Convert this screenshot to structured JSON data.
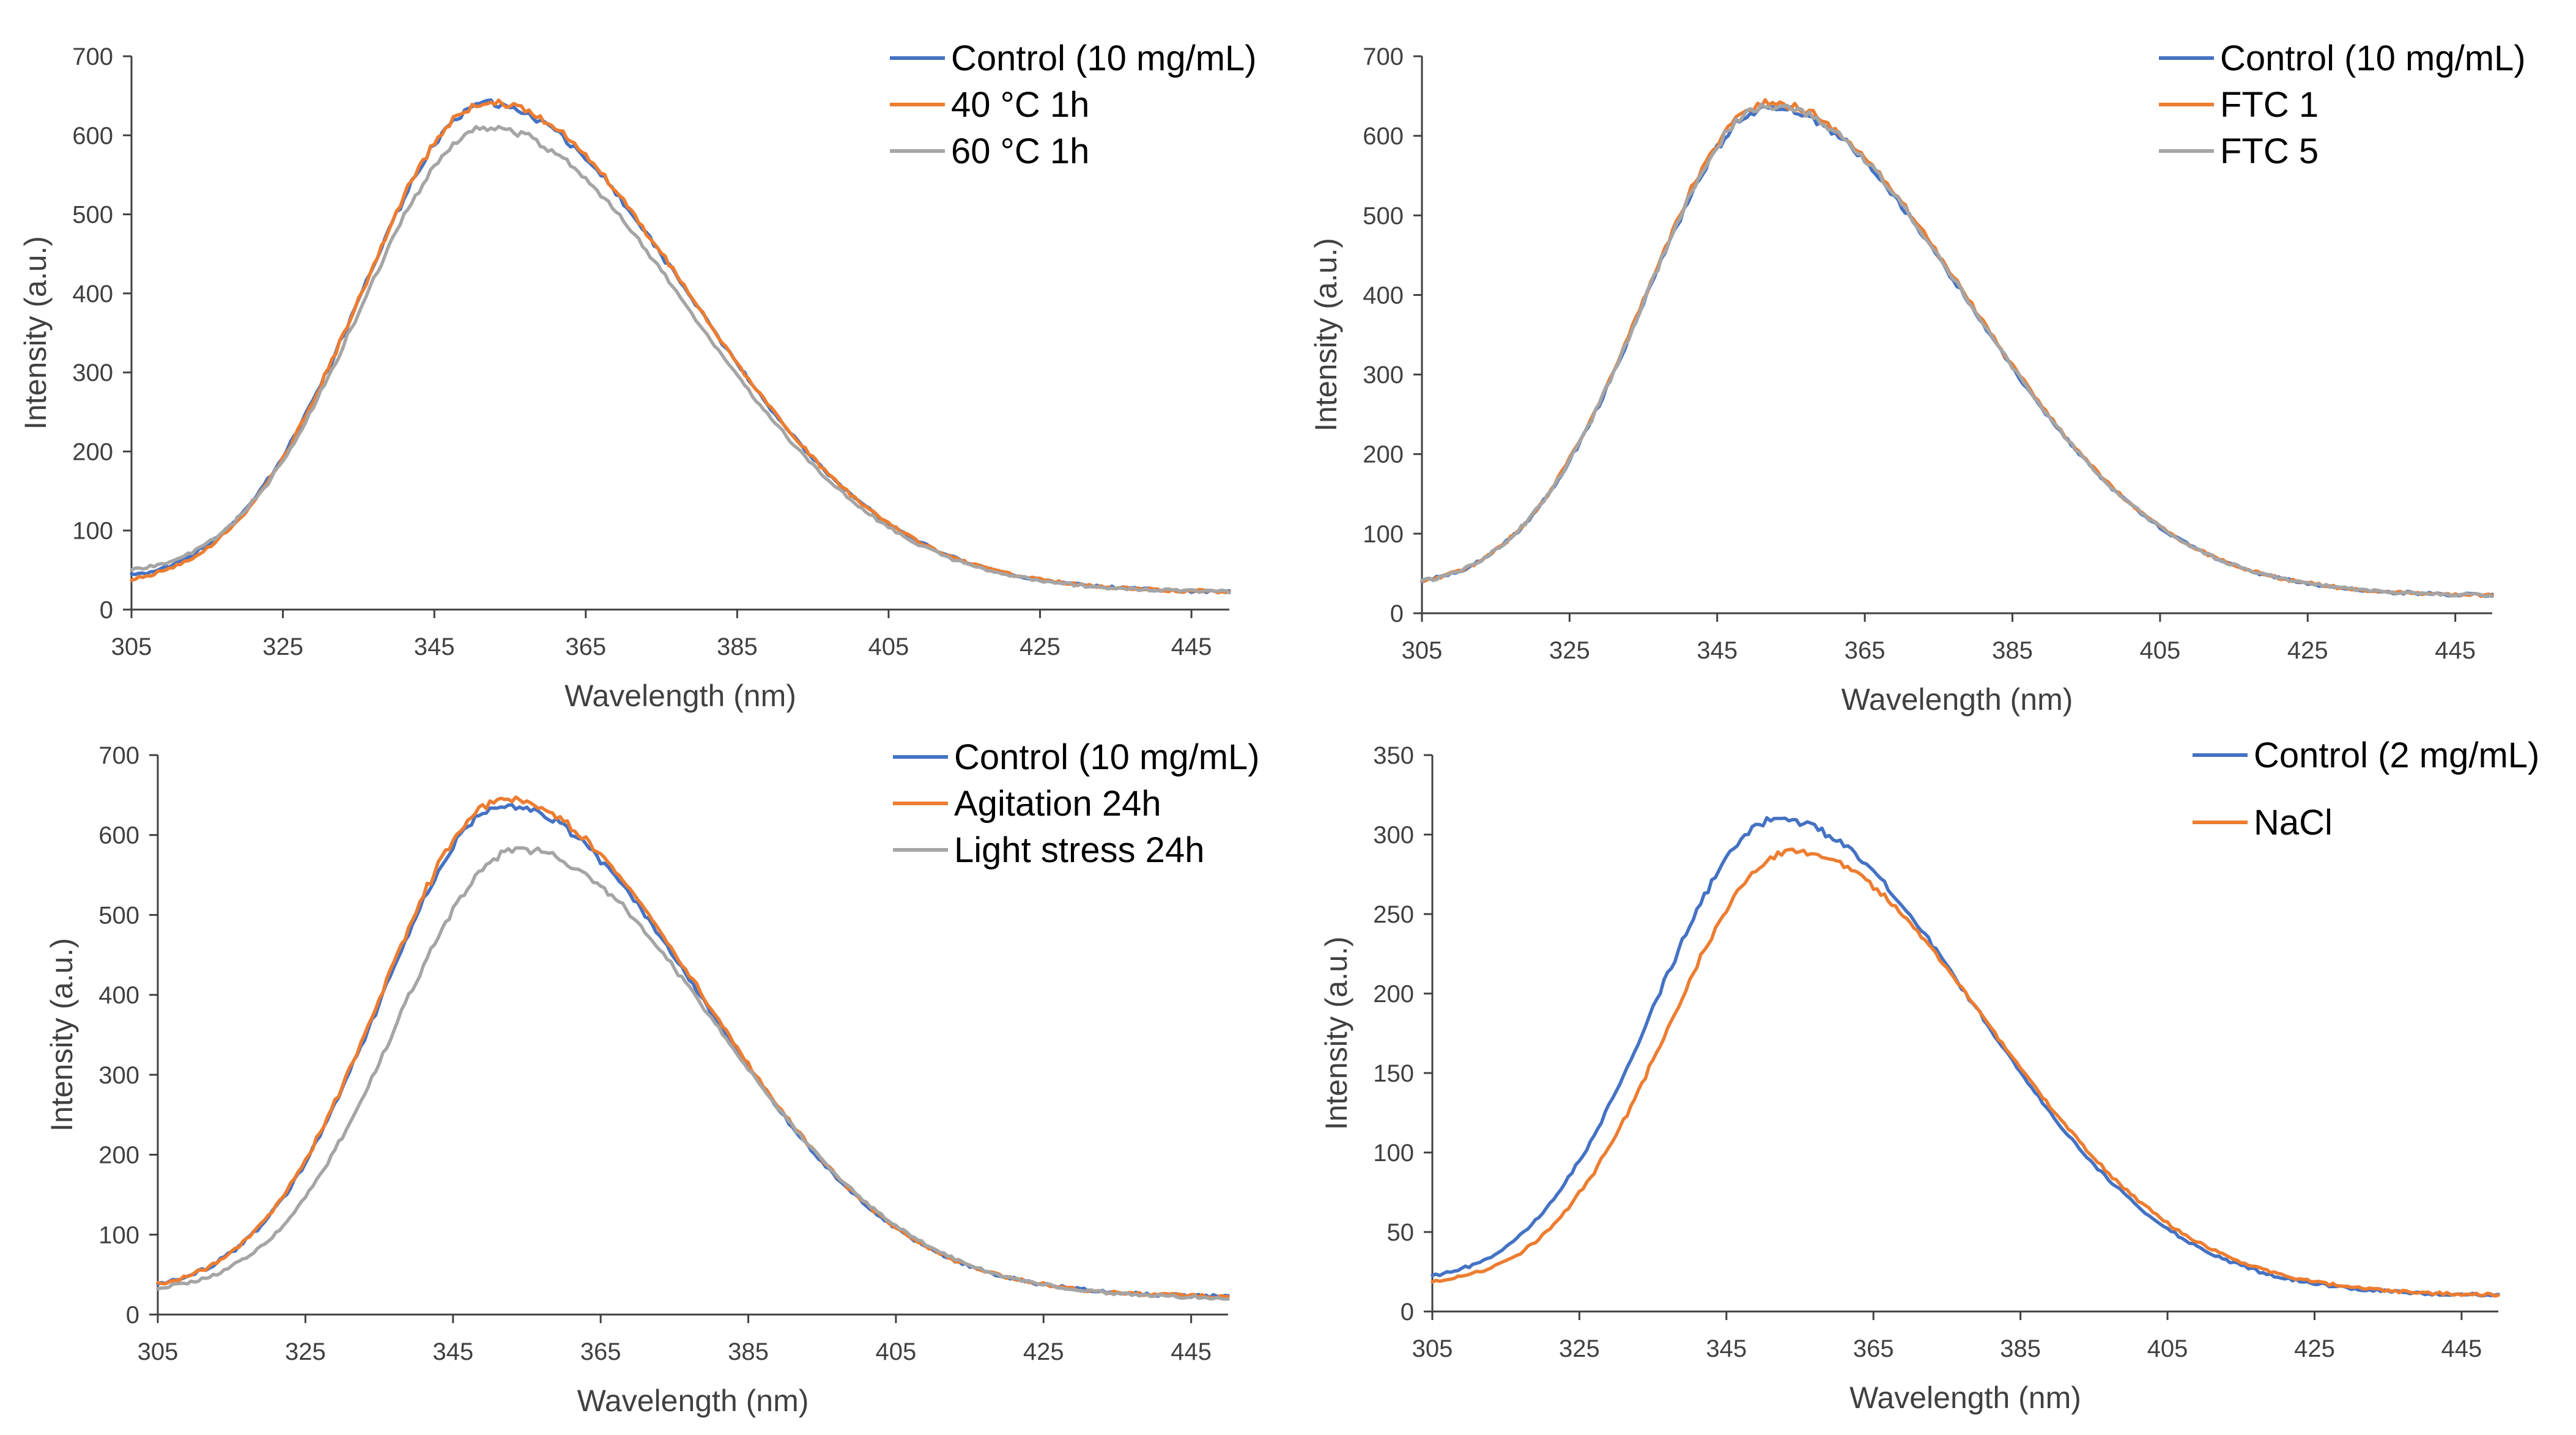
{
  "colors": {
    "blue": "#4472C4",
    "orange": "#ED7D31",
    "gray": "#A5A5A5",
    "axis": "#404040"
  },
  "chart_data": [
    {
      "type": "line",
      "xlabel": "Wavelength (nm)",
      "ylabel": "Intensity (a.u.)",
      "xlim": [
        305,
        450
      ],
      "ylim": [
        0,
        700
      ],
      "xticks": [
        305,
        325,
        345,
        365,
        385,
        405,
        425,
        445
      ],
      "yticks": [
        0,
        100,
        200,
        300,
        400,
        500,
        600,
        700
      ],
      "legend_position": "top-right",
      "series": [
        {
          "name": "Control (10 mg/mL)",
          "color": "#4472C4",
          "peak_x": 352,
          "peak_y": 640,
          "start_y": 30,
          "end_y": 22
        },
        {
          "name": "40 °C 1h",
          "color": "#ED7D31",
          "peak_x": 352,
          "peak_y": 642,
          "start_y": 25,
          "end_y": 22
        },
        {
          "name": "60 °C 1h",
          "color": "#A5A5A5",
          "peak_x": 352,
          "peak_y": 610,
          "start_y": 38,
          "end_y": 22
        }
      ]
    },
    {
      "type": "line",
      "xlabel": "Wavelength (nm)",
      "ylabel": "Intensity (a.u.)",
      "xlim": [
        305,
        450
      ],
      "ylim": [
        0,
        700
      ],
      "xticks": [
        305,
        325,
        345,
        365,
        385,
        405,
        425,
        445
      ],
      "yticks": [
        0,
        100,
        200,
        300,
        400,
        500,
        600,
        700
      ],
      "legend_position": "top-right",
      "series": [
        {
          "name": "Control (10 mg/mL)",
          "color": "#4472C4",
          "peak_x": 352,
          "peak_y": 636,
          "start_y": 27,
          "end_y": 22
        },
        {
          "name": "FTC 1",
          "color": "#ED7D31",
          "peak_x": 352,
          "peak_y": 642,
          "start_y": 27,
          "end_y": 22
        },
        {
          "name": "FTC 5",
          "color": "#A5A5A5",
          "peak_x": 352,
          "peak_y": 638,
          "start_y": 27,
          "end_y": 22
        }
      ]
    },
    {
      "type": "line",
      "xlabel": "Wavelength (nm)",
      "ylabel": "Intensity (a.u.)",
      "xlim": [
        305,
        450
      ],
      "ylim": [
        0,
        700
      ],
      "xticks": [
        305,
        325,
        345,
        365,
        385,
        405,
        425,
        445
      ],
      "yticks": [
        0,
        100,
        200,
        300,
        400,
        500,
        600,
        700
      ],
      "legend_position": "top-right",
      "series": [
        {
          "name": "Control (10 mg/mL)",
          "color": "#4472C4",
          "peak_x": 352,
          "peak_y": 637,
          "start_y": 25,
          "end_y": 22
        },
        {
          "name": "Agitation 24h",
          "color": "#ED7D31",
          "peak_x": 352,
          "peak_y": 645,
          "start_y": 25,
          "end_y": 22
        },
        {
          "name": "Light stress 24h",
          "color": "#A5A5A5",
          "peak_x": 354,
          "peak_y": 582,
          "start_y": 25,
          "end_y": 20
        }
      ]
    },
    {
      "type": "line",
      "xlabel": "Wavelength (nm)",
      "ylabel": "Intensity (a.u.)",
      "xlim": [
        305,
        450
      ],
      "ylim": [
        0,
        350
      ],
      "xticks": [
        305,
        325,
        345,
        365,
        385,
        405,
        425,
        445
      ],
      "yticks": [
        0,
        50,
        100,
        150,
        200,
        250,
        300,
        350
      ],
      "legend_position": "top-right",
      "series": [
        {
          "name": "Control (2 mg/mL)",
          "color": "#4472C4",
          "peak_x": 352,
          "peak_y": 310,
          "start_y": 16,
          "end_y": 10
        },
        {
          "name": "NaCl",
          "color": "#ED7D31",
          "peak_x": 354,
          "peak_y": 290,
          "start_y": 15,
          "end_y": 10
        }
      ]
    }
  ]
}
